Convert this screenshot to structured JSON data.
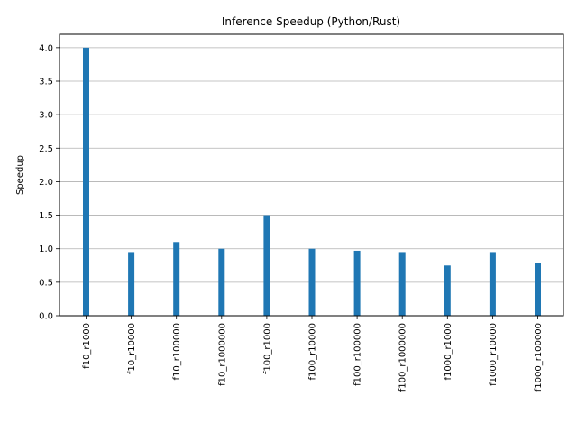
{
  "chart_data": {
    "type": "bar",
    "title": "Inference Speedup (Python/Rust)",
    "xlabel": "",
    "ylabel": "Speedup",
    "categories": [
      "f10_r1000",
      "f10_r10000",
      "f10_r100000",
      "f10_r1000000",
      "f100_r1000",
      "f100_r10000",
      "f100_r100000",
      "f100_r1000000",
      "f1000_r1000",
      "f1000_r10000",
      "f1000_r100000"
    ],
    "values": [
      4.0,
      0.95,
      1.1,
      1.0,
      1.5,
      1.0,
      0.97,
      0.95,
      0.75,
      0.95,
      0.79
    ],
    "ylim": [
      0,
      4.2
    ],
    "yticks": [
      "0.0",
      "0.5",
      "1.0",
      "1.5",
      "2.0",
      "2.5",
      "3.0",
      "3.5",
      "4.0"
    ],
    "grid": "y",
    "legend": "none",
    "bar_color": "#1f77b4",
    "grid_color": "#b0b0b0"
  }
}
